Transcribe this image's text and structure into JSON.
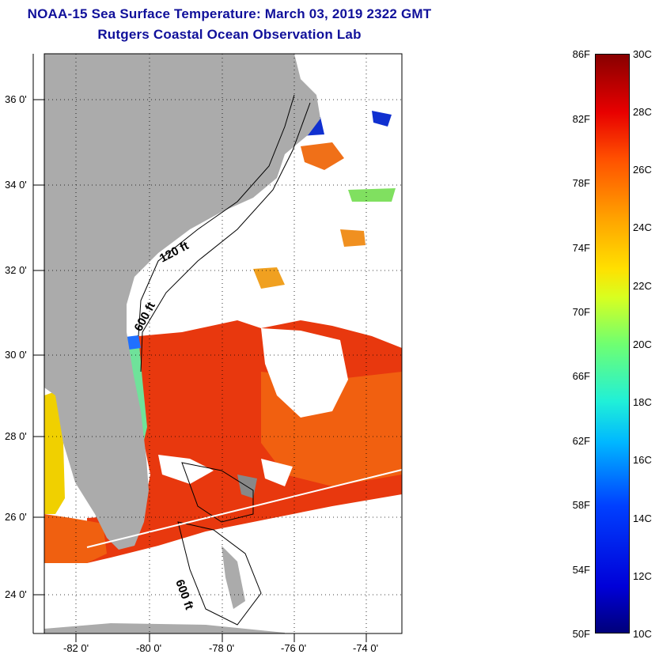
{
  "header": {
    "title": "NOAA-15 Sea Surface Temperature:  March 03, 2019 2322 GMT",
    "subtitle": "Rutgers Coastal Ocean Observation Lab"
  },
  "map": {
    "lat_labels": [
      "36 0'",
      "34 0'",
      "32 0'",
      "30 0'",
      "28 0'",
      "26 0'",
      "24 0'"
    ],
    "lon_labels": [
      "-82 0'",
      "-80 0'",
      "-78 0'",
      "-76 0'",
      "-74 0'"
    ],
    "contour_labels": [
      "120 ft",
      "600 ft",
      "600 ft"
    ],
    "colors": {
      "land": "#ababab",
      "cloud": "#ffffff",
      "warm": "#e83010"
    }
  },
  "colorbar": {
    "fahrenheit": [
      "86F",
      "82F",
      "78F",
      "74F",
      "70F",
      "66F",
      "62F",
      "58F",
      "54F",
      "50F"
    ],
    "celsius": [
      "30C",
      "28C",
      "26C",
      "24C",
      "22C",
      "20C",
      "18C",
      "16C",
      "14C",
      "12C",
      "10C"
    ]
  }
}
